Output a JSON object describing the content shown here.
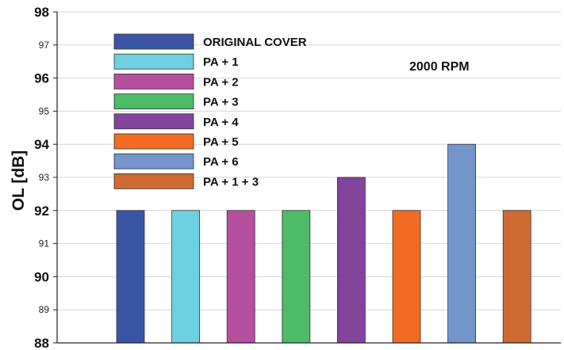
{
  "chart_data": {
    "type": "bar",
    "title": "",
    "xlabel": "",
    "ylabel": "OL [dB]",
    "ylim": [
      88,
      98
    ],
    "yticks_major": [
      88,
      90,
      92,
      94,
      96,
      98
    ],
    "yticks_minor": [
      89,
      91,
      93,
      95,
      97
    ],
    "grid": true,
    "legend_position": "top-left",
    "annotation": "2000 RPM",
    "categories": [
      "ORIGINAL COVER",
      "PA + 1",
      "PA + 2",
      "PA + 3",
      "PA + 4",
      "PA + 5",
      "PA + 6",
      "PA + 1 + 3"
    ],
    "values": [
      92,
      92,
      92,
      92,
      93,
      92,
      94,
      92
    ],
    "colors": [
      "#3b55a6",
      "#6dd0e0",
      "#b64f9e",
      "#4dbb68",
      "#83449b",
      "#f26b22",
      "#7494cc",
      "#cf6a33"
    ]
  }
}
